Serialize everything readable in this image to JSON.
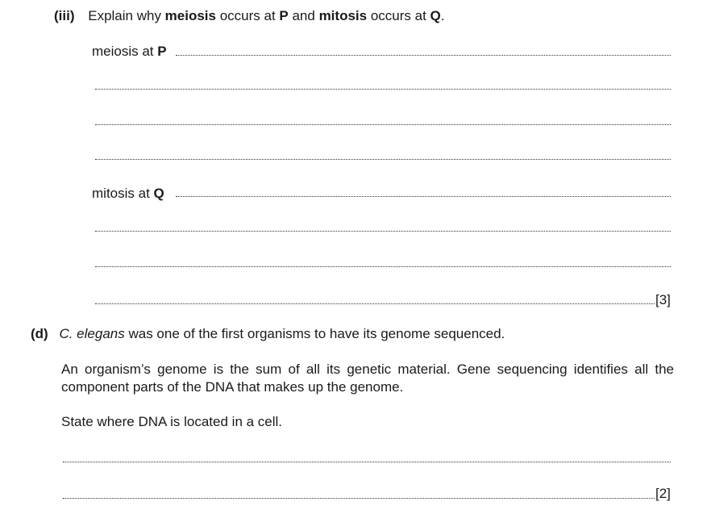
{
  "part_iii": {
    "label": "(iii)",
    "q_pre": "Explain why ",
    "q_term1": "meiosis",
    "q_mid1": " occurs at ",
    "q_p": "P",
    "q_mid2": " and ",
    "q_term2": "mitosis",
    "q_mid3": " occurs at ",
    "q_q": "Q",
    "q_end": ".",
    "meiosis_label": "meiosis at ",
    "meiosis_letter": "P",
    "mitosis_label": "mitosis at ",
    "mitosis_letter": "Q",
    "marks": "[3]"
  },
  "part_d": {
    "label": "(d)",
    "organism": "C. elegans",
    "intro_rest": " was one of the first organisms to have its genome sequenced.",
    "paragraph": "An organism’s genome is the sum of all its genetic material. Gene sequencing identifies all the component parts of the DNA that makes up the genome.",
    "question": "State where DNA is located in a cell.",
    "marks": "[2]"
  }
}
